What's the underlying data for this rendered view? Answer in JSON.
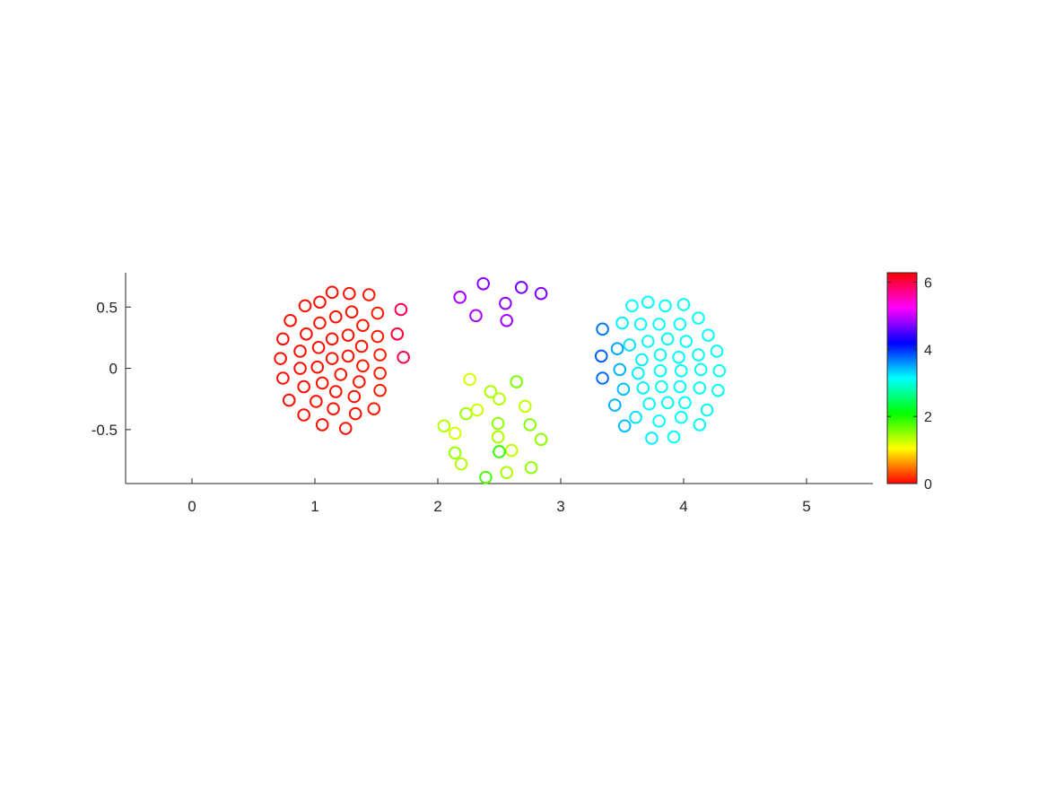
{
  "chart_data": {
    "type": "scatter",
    "title": "",
    "xlabel": "",
    "ylabel": "",
    "xlim": [
      -0.54,
      5.54
    ],
    "ylim": [
      -0.94,
      0.78
    ],
    "x_ticks": [
      "0",
      "1",
      "2",
      "3",
      "4",
      "5"
    ],
    "y_ticks": [
      "-0.5",
      "0",
      "0.5"
    ],
    "grid": false,
    "marker": "open-circle",
    "colormap": "hsv",
    "colorbar": {
      "clim": [
        0,
        6.283
      ],
      "ticks": [
        "0",
        "2",
        "4",
        "6"
      ],
      "location": "right"
    },
    "points": [
      {
        "x": 1.14,
        "y": 0.62,
        "c": 0.05
      },
      {
        "x": 1.28,
        "y": 0.61,
        "c": 0.07
      },
      {
        "x": 1.44,
        "y": 0.6,
        "c": 0.1
      },
      {
        "x": 0.92,
        "y": 0.51,
        "c": 0.05
      },
      {
        "x": 1.04,
        "y": 0.54,
        "c": 0.05
      },
      {
        "x": 1.3,
        "y": 0.46,
        "c": 0.06
      },
      {
        "x": 1.51,
        "y": 0.45,
        "c": 0.12
      },
      {
        "x": 1.7,
        "y": 0.48,
        "c": 5.95
      },
      {
        "x": 0.8,
        "y": 0.39,
        "c": 0.05
      },
      {
        "x": 1.04,
        "y": 0.37,
        "c": 0.06
      },
      {
        "x": 1.17,
        "y": 0.42,
        "c": 0.06
      },
      {
        "x": 1.39,
        "y": 0.35,
        "c": 0.08
      },
      {
        "x": 0.74,
        "y": 0.24,
        "c": 0.05
      },
      {
        "x": 0.93,
        "y": 0.28,
        "c": 0.05
      },
      {
        "x": 1.14,
        "y": 0.24,
        "c": 0.06
      },
      {
        "x": 1.27,
        "y": 0.27,
        "c": 0.07
      },
      {
        "x": 1.51,
        "y": 0.26,
        "c": 0.12
      },
      {
        "x": 1.67,
        "y": 0.28,
        "c": 6.05
      },
      {
        "x": 0.88,
        "y": 0.14,
        "c": 0.05
      },
      {
        "x": 1.03,
        "y": 0.17,
        "c": 0.06
      },
      {
        "x": 1.38,
        "y": 0.18,
        "c": 0.08
      },
      {
        "x": 0.72,
        "y": 0.08,
        "c": 0.05
      },
      {
        "x": 1.14,
        "y": 0.08,
        "c": 0.06
      },
      {
        "x": 1.27,
        "y": 0.1,
        "c": 0.07
      },
      {
        "x": 1.53,
        "y": 0.11,
        "c": 0.12
      },
      {
        "x": 1.72,
        "y": 0.09,
        "c": 6.0
      },
      {
        "x": 0.88,
        "y": 0.0,
        "c": 0.05
      },
      {
        "x": 1.02,
        "y": 0.01,
        "c": 0.06
      },
      {
        "x": 1.39,
        "y": 0.02,
        "c": 0.08
      },
      {
        "x": 0.74,
        "y": -0.08,
        "c": 0.05
      },
      {
        "x": 1.21,
        "y": -0.05,
        "c": 0.07
      },
      {
        "x": 1.53,
        "y": -0.04,
        "c": 0.12
      },
      {
        "x": 0.91,
        "y": -0.15,
        "c": 0.05
      },
      {
        "x": 1.06,
        "y": -0.12,
        "c": 0.06
      },
      {
        "x": 1.36,
        "y": -0.11,
        "c": 0.08
      },
      {
        "x": 0.79,
        "y": -0.26,
        "c": 0.05
      },
      {
        "x": 1.17,
        "y": -0.19,
        "c": 0.06
      },
      {
        "x": 1.32,
        "y": -0.23,
        "c": 0.07
      },
      {
        "x": 1.53,
        "y": -0.18,
        "c": 0.12
      },
      {
        "x": 1.01,
        "y": -0.27,
        "c": 0.06
      },
      {
        "x": 0.91,
        "y": -0.38,
        "c": 0.05
      },
      {
        "x": 1.15,
        "y": -0.33,
        "c": 0.06
      },
      {
        "x": 1.33,
        "y": -0.37,
        "c": 0.07
      },
      {
        "x": 1.48,
        "y": -0.33,
        "c": 0.1
      },
      {
        "x": 1.06,
        "y": -0.46,
        "c": 0.05
      },
      {
        "x": 1.25,
        "y": -0.49,
        "c": 0.06
      },
      {
        "x": 2.37,
        "y": 0.69,
        "c": 4.75
      },
      {
        "x": 2.68,
        "y": 0.66,
        "c": 4.65
      },
      {
        "x": 2.84,
        "y": 0.61,
        "c": 4.7
      },
      {
        "x": 2.18,
        "y": 0.58,
        "c": 4.85
      },
      {
        "x": 2.55,
        "y": 0.53,
        "c": 4.8
      },
      {
        "x": 2.31,
        "y": 0.43,
        "c": 4.9
      },
      {
        "x": 2.56,
        "y": 0.39,
        "c": 4.85
      },
      {
        "x": 2.26,
        "y": -0.09,
        "c": 1.2
      },
      {
        "x": 2.64,
        "y": -0.11,
        "c": 1.6
      },
      {
        "x": 2.43,
        "y": -0.19,
        "c": 1.4
      },
      {
        "x": 2.5,
        "y": -0.25,
        "c": 1.35
      },
      {
        "x": 2.71,
        "y": -0.31,
        "c": 1.3
      },
      {
        "x": 2.23,
        "y": -0.37,
        "c": 1.45
      },
      {
        "x": 2.32,
        "y": -0.34,
        "c": 1.25
      },
      {
        "x": 2.49,
        "y": -0.45,
        "c": 1.5
      },
      {
        "x": 2.75,
        "y": -0.46,
        "c": 1.55
      },
      {
        "x": 2.05,
        "y": -0.47,
        "c": 1.35
      },
      {
        "x": 2.14,
        "y": -0.53,
        "c": 1.2
      },
      {
        "x": 2.49,
        "y": -0.56,
        "c": 1.4
      },
      {
        "x": 2.84,
        "y": -0.58,
        "c": 1.5
      },
      {
        "x": 2.6,
        "y": -0.67,
        "c": 1.3
      },
      {
        "x": 2.14,
        "y": -0.69,
        "c": 1.45
      },
      {
        "x": 2.5,
        "y": -0.68,
        "c": 1.9
      },
      {
        "x": 2.19,
        "y": -0.78,
        "c": 1.35
      },
      {
        "x": 2.76,
        "y": -0.81,
        "c": 1.5
      },
      {
        "x": 2.56,
        "y": -0.85,
        "c": 1.4
      },
      {
        "x": 2.39,
        "y": -0.89,
        "c": 1.8
      },
      {
        "x": 3.71,
        "y": 0.54,
        "c": 3.15
      },
      {
        "x": 3.58,
        "y": 0.51,
        "c": 3.15
      },
      {
        "x": 3.85,
        "y": 0.51,
        "c": 3.1
      },
      {
        "x": 4.0,
        "y": 0.52,
        "c": 3.1
      },
      {
        "x": 3.5,
        "y": 0.37,
        "c": 3.2
      },
      {
        "x": 3.65,
        "y": 0.36,
        "c": 3.15
      },
      {
        "x": 3.8,
        "y": 0.36,
        "c": 3.1
      },
      {
        "x": 3.97,
        "y": 0.36,
        "c": 3.15
      },
      {
        "x": 4.12,
        "y": 0.41,
        "c": 3.1
      },
      {
        "x": 3.34,
        "y": 0.32,
        "c": 3.7
      },
      {
        "x": 4.2,
        "y": 0.27,
        "c": 3.1
      },
      {
        "x": 3.71,
        "y": 0.22,
        "c": 3.15
      },
      {
        "x": 3.87,
        "y": 0.24,
        "c": 3.1
      },
      {
        "x": 4.02,
        "y": 0.22,
        "c": 3.15
      },
      {
        "x": 3.56,
        "y": 0.19,
        "c": 3.25
      },
      {
        "x": 3.46,
        "y": 0.16,
        "c": 3.5
      },
      {
        "x": 4.27,
        "y": 0.14,
        "c": 3.1
      },
      {
        "x": 3.33,
        "y": 0.1,
        "c": 3.8
      },
      {
        "x": 3.81,
        "y": 0.11,
        "c": 3.1
      },
      {
        "x": 3.96,
        "y": 0.09,
        "c": 3.15
      },
      {
        "x": 4.12,
        "y": 0.11,
        "c": 3.1
      },
      {
        "x": 3.66,
        "y": 0.07,
        "c": 3.2
      },
      {
        "x": 3.48,
        "y": -0.01,
        "c": 3.45
      },
      {
        "x": 3.63,
        "y": -0.04,
        "c": 3.2
      },
      {
        "x": 3.81,
        "y": -0.02,
        "c": 3.15
      },
      {
        "x": 3.98,
        "y": -0.02,
        "c": 3.15
      },
      {
        "x": 4.14,
        "y": -0.01,
        "c": 3.1
      },
      {
        "x": 4.29,
        "y": -0.02,
        "c": 3.1
      },
      {
        "x": 3.34,
        "y": -0.08,
        "c": 3.75
      },
      {
        "x": 3.67,
        "y": -0.16,
        "c": 3.2
      },
      {
        "x": 3.82,
        "y": -0.15,
        "c": 3.1
      },
      {
        "x": 3.97,
        "y": -0.15,
        "c": 3.15
      },
      {
        "x": 4.13,
        "y": -0.16,
        "c": 3.1
      },
      {
        "x": 4.28,
        "y": -0.18,
        "c": 3.1
      },
      {
        "x": 3.51,
        "y": -0.17,
        "c": 3.4
      },
      {
        "x": 3.44,
        "y": -0.3,
        "c": 3.45
      },
      {
        "x": 3.72,
        "y": -0.29,
        "c": 3.15
      },
      {
        "x": 3.87,
        "y": -0.28,
        "c": 3.1
      },
      {
        "x": 4.01,
        "y": -0.28,
        "c": 3.15
      },
      {
        "x": 4.19,
        "y": -0.34,
        "c": 3.1
      },
      {
        "x": 3.61,
        "y": -0.4,
        "c": 3.25
      },
      {
        "x": 3.8,
        "y": -0.43,
        "c": 3.15
      },
      {
        "x": 3.98,
        "y": -0.4,
        "c": 3.15
      },
      {
        "x": 4.13,
        "y": -0.46,
        "c": 3.1
      },
      {
        "x": 3.52,
        "y": -0.47,
        "c": 3.4
      },
      {
        "x": 3.74,
        "y": -0.57,
        "c": 3.2
      },
      {
        "x": 3.92,
        "y": -0.56,
        "c": 3.15
      }
    ]
  }
}
